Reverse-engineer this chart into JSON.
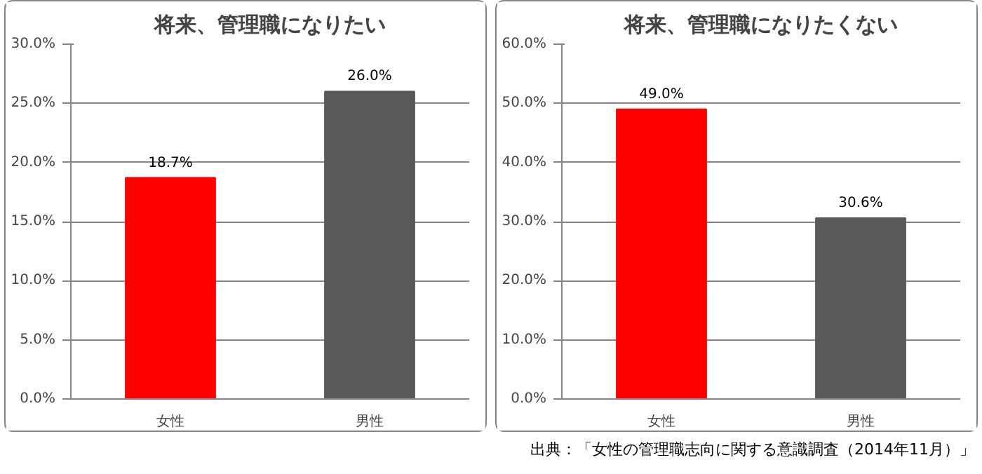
{
  "chart_data": [
    {
      "type": "bar",
      "title": "将来、管理職になりたい",
      "categories": [
        "女性",
        "男性"
      ],
      "values": [
        18.7,
        26.0
      ],
      "colors": [
        "#ff0000",
        "#595959"
      ],
      "value_labels": [
        "18.7%",
        "26.0%"
      ],
      "ylim": [
        0,
        30
      ],
      "yticks": [
        {
          "value": 0,
          "label": "0.0%"
        },
        {
          "value": 5,
          "label": "5.0%"
        },
        {
          "value": 10,
          "label": "10.0%"
        },
        {
          "value": 15,
          "label": "15.0%"
        },
        {
          "value": 20,
          "label": "20.0%"
        },
        {
          "value": 25,
          "label": "25.0%"
        },
        {
          "value": 30,
          "label": "30.0%"
        }
      ],
      "grid": "y"
    },
    {
      "type": "bar",
      "title": "将来、管理職になりたくない",
      "categories": [
        "女性",
        "男性"
      ],
      "values": [
        49.0,
        30.6
      ],
      "colors": [
        "#ff0000",
        "#595959"
      ],
      "value_labels": [
        "49.0%",
        "30.6%"
      ],
      "ylim": [
        0,
        60
      ],
      "yticks": [
        {
          "value": 0,
          "label": "0.0%"
        },
        {
          "value": 10,
          "label": "10.0%"
        },
        {
          "value": 20,
          "label": "20.0%"
        },
        {
          "value": 30,
          "label": "30.0%"
        },
        {
          "value": 40,
          "label": "40.0%"
        },
        {
          "value": 50,
          "label": "50.0%"
        },
        {
          "value": 60,
          "label": "60.0%"
        }
      ],
      "grid": "y",
      "annotations": [
        "出典：「女性の管理職志向に関する意識調査（2014年11月）」"
      ]
    }
  ]
}
